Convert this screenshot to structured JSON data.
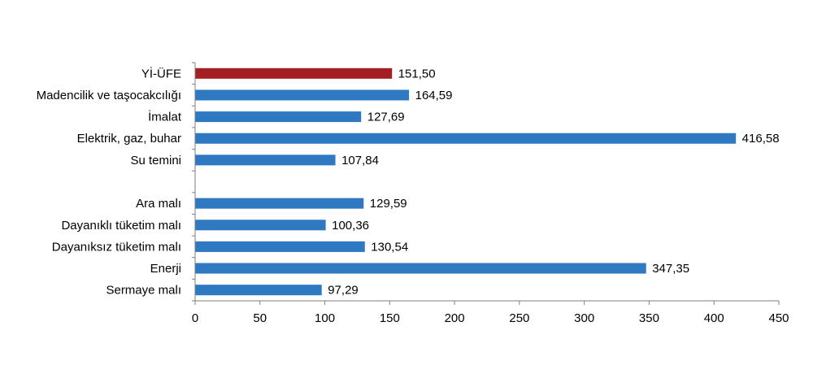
{
  "chart_data": {
    "type": "bar",
    "orientation": "horizontal",
    "title": "",
    "xlabel": "",
    "ylabel": "",
    "xlim": [
      0,
      450
    ],
    "ticks": [
      "0",
      "50",
      "100",
      "150",
      "200",
      "250",
      "300",
      "350",
      "400",
      "450"
    ],
    "tick_values": [
      0,
      50,
      100,
      150,
      200,
      250,
      300,
      350,
      400,
      450
    ],
    "grid": false,
    "legend": "none",
    "colors": {
      "highlight": "#a31f22",
      "default": "#2f78c2"
    },
    "categories": [
      {
        "label": "Yİ-ÜFE",
        "value": 151.5,
        "value_label": "151,50",
        "highlight": true
      },
      {
        "label": "Madencilik ve taşocakcılığı",
        "value": 164.59,
        "value_label": "164,59",
        "highlight": false
      },
      {
        "label": "İmalat",
        "value": 127.69,
        "value_label": "127,69",
        "highlight": false
      },
      {
        "label": "Elektrik, gaz, buhar",
        "value": 416.58,
        "value_label": "416,58",
        "highlight": false
      },
      {
        "label": "Su temini",
        "value": 107.84,
        "value_label": "107,84",
        "highlight": false
      },
      {
        "label": "",
        "value": null,
        "value_label": "",
        "highlight": false,
        "gap": true
      },
      {
        "label": "Ara malı",
        "value": 129.59,
        "value_label": "129,59",
        "highlight": false
      },
      {
        "label": "Dayanıklı tüketim malı",
        "value": 100.36,
        "value_label": "100,36",
        "highlight": false
      },
      {
        "label": "Dayanıksız tüketim malı",
        "value": 130.54,
        "value_label": "130,54",
        "highlight": false
      },
      {
        "label": "Enerji",
        "value": 347.35,
        "value_label": "347,35",
        "highlight": false
      },
      {
        "label": "Sermaye malı",
        "value": 97.29,
        "value_label": "97,29",
        "highlight": false
      }
    ]
  }
}
